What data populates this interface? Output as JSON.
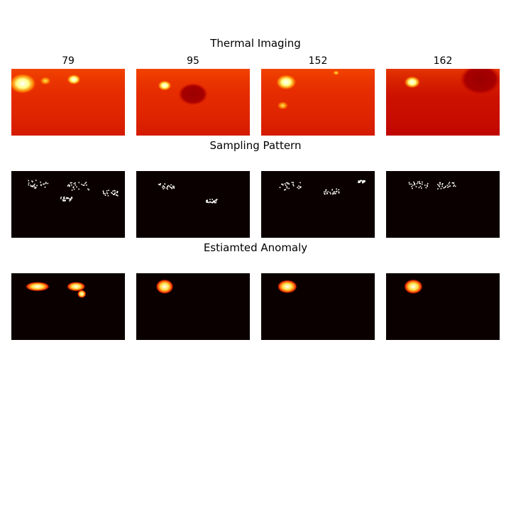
{
  "chart_data": {
    "type": "heatmap",
    "title": "Thermal Imaging",
    "columns": [
      "79",
      "95",
      "152",
      "162"
    ],
    "rows": [
      {
        "title": "Thermal Imaging",
        "colormap": "hot",
        "panels": [
          {
            "frame": "79",
            "background": "#e32800",
            "hotspots": [
              {
                "cx": 0.1,
                "cy": 0.22,
                "r": 0.12,
                "level": "white"
              },
              {
                "cx": 0.55,
                "cy": 0.16,
                "r": 0.06,
                "level": "white"
              },
              {
                "cx": 0.3,
                "cy": 0.18,
                "r": 0.05,
                "level": "yellow"
              }
            ]
          },
          {
            "frame": "95",
            "background": "#e32800",
            "hotspots": [
              {
                "cx": 0.25,
                "cy": 0.25,
                "r": 0.06,
                "level": "white"
              },
              {
                "cx": 0.5,
                "cy": 0.38,
                "r": 0.13,
                "level": "dark"
              }
            ]
          },
          {
            "frame": "152",
            "background": "#e32800",
            "hotspots": [
              {
                "cx": 0.22,
                "cy": 0.2,
                "r": 0.09,
                "level": "white"
              },
              {
                "cx": 0.19,
                "cy": 0.55,
                "r": 0.05,
                "level": "yellow"
              },
              {
                "cx": 0.66,
                "cy": 0.06,
                "r": 0.03,
                "level": "yellow"
              }
            ]
          },
          {
            "frame": "162",
            "background": "#c40800",
            "hotspots": [
              {
                "cx": 0.23,
                "cy": 0.2,
                "r": 0.07,
                "level": "white"
              },
              {
                "cx": 0.83,
                "cy": 0.16,
                "r": 0.18,
                "level": "dark"
              }
            ]
          }
        ]
      },
      {
        "title": "Sampling Pattern",
        "colormap": "binary",
        "panels": [
          {
            "frame": "79",
            "background": "#0b0000",
            "hotspots": [
              {
                "cx": 0.22,
                "cy": 0.19,
                "r": 0.1,
                "level": "dots"
              },
              {
                "cx": 0.58,
                "cy": 0.22,
                "r": 0.1,
                "level": "dots"
              },
              {
                "cx": 0.87,
                "cy": 0.32,
                "r": 0.07,
                "level": "dots"
              },
              {
                "cx": 0.48,
                "cy": 0.41,
                "r": 0.05,
                "level": "dots"
              }
            ]
          },
          {
            "frame": "95",
            "background": "#0b0000",
            "hotspots": [
              {
                "cx": 0.26,
                "cy": 0.22,
                "r": 0.07,
                "level": "dots"
              },
              {
                "cx": 0.66,
                "cy": 0.44,
                "r": 0.05,
                "level": "dots"
              }
            ]
          },
          {
            "frame": "152",
            "background": "#0b0000",
            "hotspots": [
              {
                "cx": 0.26,
                "cy": 0.22,
                "r": 0.1,
                "level": "dots"
              },
              {
                "cx": 0.61,
                "cy": 0.3,
                "r": 0.07,
                "level": "dots"
              },
              {
                "cx": 0.88,
                "cy": 0.15,
                "r": 0.03,
                "level": "dots"
              }
            ]
          },
          {
            "frame": "162",
            "background": "#0b0000",
            "hotspots": [
              {
                "cx": 0.28,
                "cy": 0.2,
                "r": 0.09,
                "level": "dots"
              },
              {
                "cx": 0.53,
                "cy": 0.21,
                "r": 0.08,
                "level": "dots"
              }
            ]
          }
        ]
      },
      {
        "title": "Estiamted Anomaly",
        "colormap": "hot",
        "panels": [
          {
            "frame": "79",
            "background": "#0b0000",
            "hotspots": [
              {
                "cx": 0.23,
                "cy": 0.2,
                "w": 0.18,
                "h": 0.08,
                "level": "blob"
              },
              {
                "cx": 0.57,
                "cy": 0.2,
                "w": 0.13,
                "h": 0.08,
                "level": "blob"
              },
              {
                "cx": 0.62,
                "cy": 0.31,
                "w": 0.04,
                "h": 0.06,
                "level": "blob"
              }
            ]
          },
          {
            "frame": "95",
            "background": "#0b0000",
            "hotspots": [
              {
                "cx": 0.25,
                "cy": 0.2,
                "w": 0.12,
                "h": 0.16,
                "level": "blob"
              }
            ]
          },
          {
            "frame": "152",
            "background": "#0b0000",
            "hotspots": [
              {
                "cx": 0.23,
                "cy": 0.2,
                "w": 0.14,
                "h": 0.14,
                "level": "blob"
              }
            ]
          },
          {
            "frame": "162",
            "background": "#0b0000",
            "hotspots": [
              {
                "cx": 0.24,
                "cy": 0.2,
                "w": 0.13,
                "h": 0.16,
                "level": "blob"
              }
            ]
          }
        ]
      }
    ],
    "grid": false,
    "legend": "none"
  }
}
